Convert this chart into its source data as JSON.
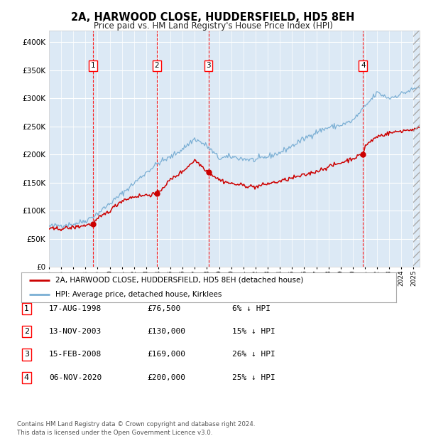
{
  "title": "2A, HARWOOD CLOSE, HUDDERSFIELD, HD5 8EH",
  "subtitle": "Price paid vs. HM Land Registry's House Price Index (HPI)",
  "footer_line1": "Contains HM Land Registry data © Crown copyright and database right 2024.",
  "footer_line2": "This data is licensed under the Open Government Licence v3.0.",
  "legend_label_red": "2A, HARWOOD CLOSE, HUDDERSFIELD, HD5 8EH (detached house)",
  "legend_label_blue": "HPI: Average price, detached house, Kirklees",
  "transactions": [
    {
      "num": 1,
      "date": "17-AUG-1998",
      "price": 76500,
      "pct": "6%",
      "dir": "↓",
      "year": 1998.62
    },
    {
      "num": 2,
      "date": "13-NOV-2003",
      "price": 130000,
      "pct": "15%",
      "dir": "↓",
      "year": 2003.87
    },
    {
      "num": 3,
      "date": "15-FEB-2008",
      "price": 169000,
      "pct": "26%",
      "dir": "↓",
      "year": 2008.12
    },
    {
      "num": 4,
      "date": "06-NOV-2020",
      "price": 200000,
      "pct": "25%",
      "dir": "↓",
      "year": 2020.85
    }
  ],
  "bg_color": "#dce9f5",
  "red_color": "#cc0000",
  "blue_color": "#7bafd4",
  "ylim": [
    0,
    420000
  ],
  "xlim_start": 1995.0,
  "xlim_end": 2025.5,
  "table_rows": [
    [
      "1",
      "17-AUG-1998",
      "£76,500",
      "6% ↓ HPI"
    ],
    [
      "2",
      "13-NOV-2003",
      "£130,000",
      "15% ↓ HPI"
    ],
    [
      "3",
      "15-FEB-2008",
      "£169,000",
      "26% ↓ HPI"
    ],
    [
      "4",
      "06-NOV-2020",
      "£200,000",
      "25% ↓ HPI"
    ]
  ]
}
